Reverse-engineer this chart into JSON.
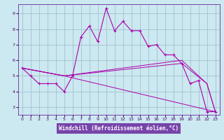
{
  "bg_color": "#cce8f0",
  "line_color": "#aa00aa",
  "grid_color": "#99bbcc",
  "xlabel": "Windchill (Refroidissement éolien,°C)",
  "xlim": [
    -0.5,
    23.5
  ],
  "ylim": [
    2.5,
    9.6
  ],
  "xticks": [
    0,
    1,
    2,
    3,
    4,
    5,
    6,
    7,
    8,
    9,
    10,
    11,
    12,
    13,
    14,
    15,
    16,
    17,
    18,
    19,
    20,
    21,
    22,
    23
  ],
  "yticks": [
    3,
    4,
    5,
    6,
    7,
    8,
    9
  ],
  "line1_x": [
    0,
    1,
    2,
    3,
    4,
    5,
    6,
    7,
    8,
    9,
    10,
    11,
    12,
    13,
    14,
    15,
    16,
    17,
    18,
    19,
    20,
    21,
    22,
    23
  ],
  "line1_y": [
    5.5,
    5.0,
    4.5,
    4.5,
    4.5,
    4.0,
    5.0,
    7.5,
    8.2,
    7.2,
    9.35,
    7.9,
    8.5,
    7.9,
    7.9,
    6.9,
    7.0,
    6.35,
    6.35,
    5.8,
    4.5,
    4.7,
    2.7,
    2.7
  ],
  "line2_x": [
    0,
    5,
    23
  ],
  "line2_y": [
    5.5,
    5.0,
    2.7
  ],
  "line3_x": [
    0,
    5,
    19,
    22,
    23
  ],
  "line3_y": [
    5.5,
    5.0,
    6.0,
    4.5,
    2.7
  ],
  "line4_x": [
    0,
    5,
    19,
    22,
    23
  ],
  "line4_y": [
    5.5,
    5.0,
    5.8,
    4.5,
    2.7
  ],
  "xlabel_bg": "#7744aa",
  "xlabel_fg": "white",
  "tick_color": "#440066",
  "spine_color": "#7744aa"
}
